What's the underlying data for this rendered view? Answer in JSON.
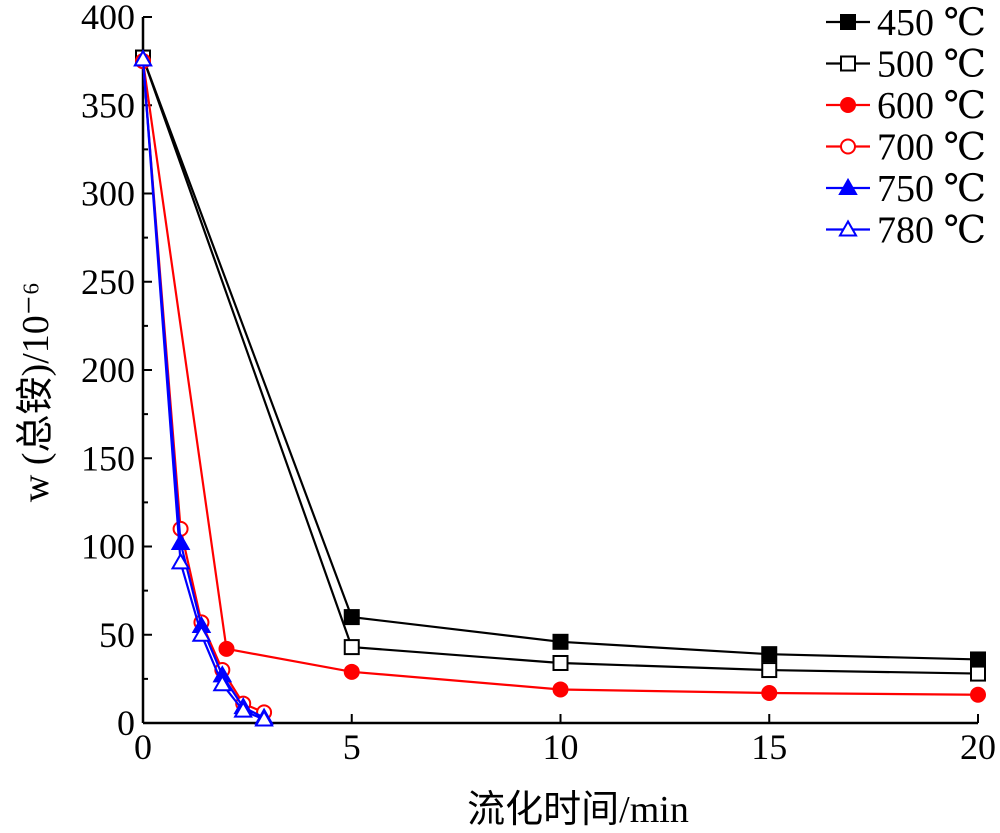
{
  "chart_data": {
    "type": "line",
    "xlabel": "流化时间/min",
    "ylabel": "w (总铵)/10⁻⁶",
    "xlim": [
      0,
      20
    ],
    "ylim": [
      0,
      400
    ],
    "xticks": [
      "0",
      "5",
      "10",
      "15",
      "20"
    ],
    "yticks": [
      "0",
      "50",
      "100",
      "150",
      "200",
      "250",
      "300",
      "350",
      "400"
    ],
    "grid": false,
    "legend_position": "top-right",
    "series": [
      {
        "name": "450 ℃",
        "color": "#000000",
        "marker": "square",
        "filled": true,
        "x": [
          0,
          5,
          10,
          15,
          20
        ],
        "y": [
          377,
          60,
          46,
          39,
          36
        ]
      },
      {
        "name": "500 ℃",
        "color": "#000000",
        "marker": "square",
        "filled": false,
        "x": [
          0,
          5,
          10,
          15,
          20
        ],
        "y": [
          377,
          43,
          34,
          30,
          28
        ]
      },
      {
        "name": "600 ℃",
        "color": "#ff0000",
        "marker": "circle",
        "filled": true,
        "x": [
          0,
          2,
          5,
          10,
          15,
          20
        ],
        "y": [
          375,
          42,
          29,
          19,
          17,
          16
        ]
      },
      {
        "name": "700 ℃",
        "color": "#ff0000",
        "marker": "circle",
        "filled": false,
        "x": [
          0,
          0.9,
          1.4,
          1.9,
          2.4,
          2.9
        ],
        "y": [
          375,
          110,
          57,
          30,
          11,
          6
        ]
      },
      {
        "name": "750 ℃",
        "color": "#0000ff",
        "marker": "triangle",
        "filled": true,
        "x": [
          0,
          0.9,
          1.4,
          1.9,
          2.4,
          2.9
        ],
        "y": [
          376,
          102,
          55,
          27,
          9,
          3
        ]
      },
      {
        "name": "780 ℃",
        "color": "#0000ff",
        "marker": "triangle",
        "filled": false,
        "x": [
          0,
          0.9,
          1.4,
          1.9,
          2.4,
          2.9
        ],
        "y": [
          376,
          91,
          50,
          22,
          7,
          2
        ]
      }
    ]
  }
}
